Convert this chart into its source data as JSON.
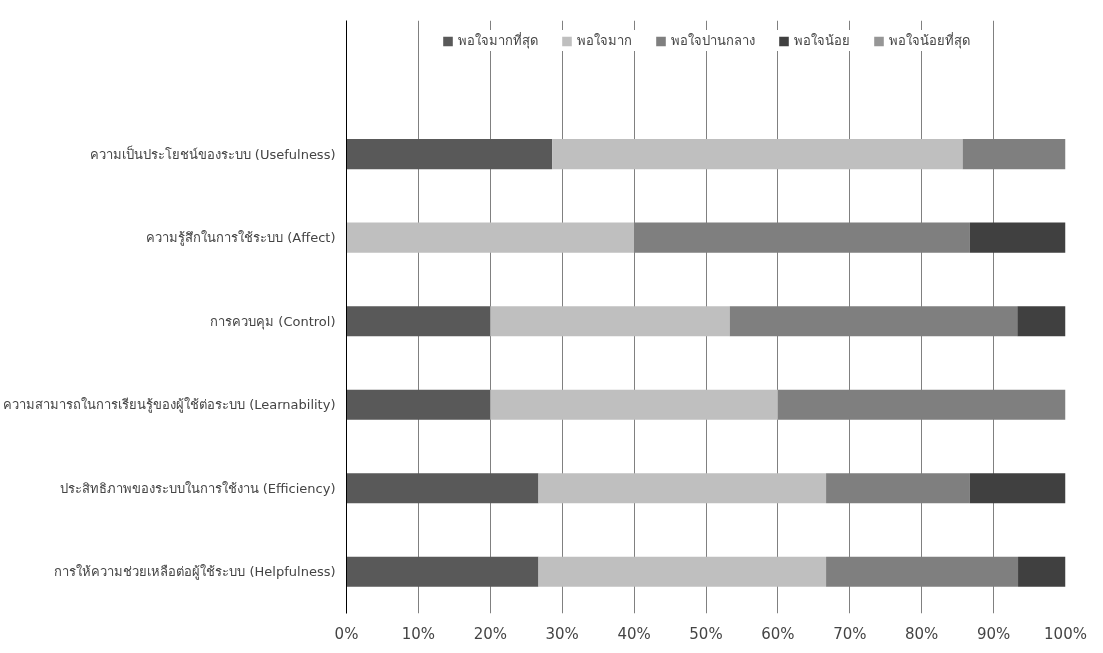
{
  "chart_data": {
    "type": "bar",
    "orientation": "horizontal",
    "stacked": true,
    "categories": [
      "ความเป็นประโยชน์ของระบบ (Usefulness)",
      "ความรู้สึกในการใช้ระบบ (Affect)",
      "การควบคุม (Control)",
      "ความสามารถในการเรียนรู้ของผู้ใช้ต่อระบบ (Learnability)",
      "ประสิทธิภาพของระบบในการใช้งาน (Efficiency)",
      "การให้ความช่วยเหลือต่อผู้ใช้ระบบ (Helpfulness)"
    ],
    "series": [
      {
        "name": "พอใจมากที่สุด",
        "color": "#595959",
        "values": [
          28.6,
          0,
          20.0,
          20.0,
          26.7,
          26.7
        ]
      },
      {
        "name": "พอใจมาก",
        "color": "#bfbfbf",
        "values": [
          57.1,
          40.0,
          33.3,
          40.0,
          40.0,
          40.0
        ]
      },
      {
        "name": "พอใจปานกลาง",
        "color": "#7f7f7f",
        "values": [
          14.3,
          46.7,
          40.0,
          40.0,
          20.0,
          26.7
        ]
      },
      {
        "name": "พอใจน้อย",
        "color": "#404040",
        "values": [
          0,
          13.3,
          6.7,
          0,
          13.3,
          6.6
        ]
      },
      {
        "name": "พอใจน้อยที่สุด",
        "color": "#969696",
        "values": [
          null,
          null,
          null,
          null,
          null,
          null
        ]
      }
    ],
    "xlim": [
      0,
      100
    ],
    "xticks": [
      {
        "value": 0,
        "label": "0%"
      },
      {
        "value": 10,
        "label": "10%"
      },
      {
        "value": 20,
        "label": "20%"
      },
      {
        "value": 30,
        "label": "30%"
      },
      {
        "value": 40,
        "label": "40%"
      },
      {
        "value": 50,
        "label": "50%"
      },
      {
        "value": 60,
        "label": "60%"
      },
      {
        "value": 70,
        "label": "70%"
      },
      {
        "value": 80,
        "label": "80%"
      },
      {
        "value": 90,
        "label": "90%"
      },
      {
        "value": 100,
        "label": "100%"
      }
    ],
    "grid": "x",
    "legend": "top"
  }
}
